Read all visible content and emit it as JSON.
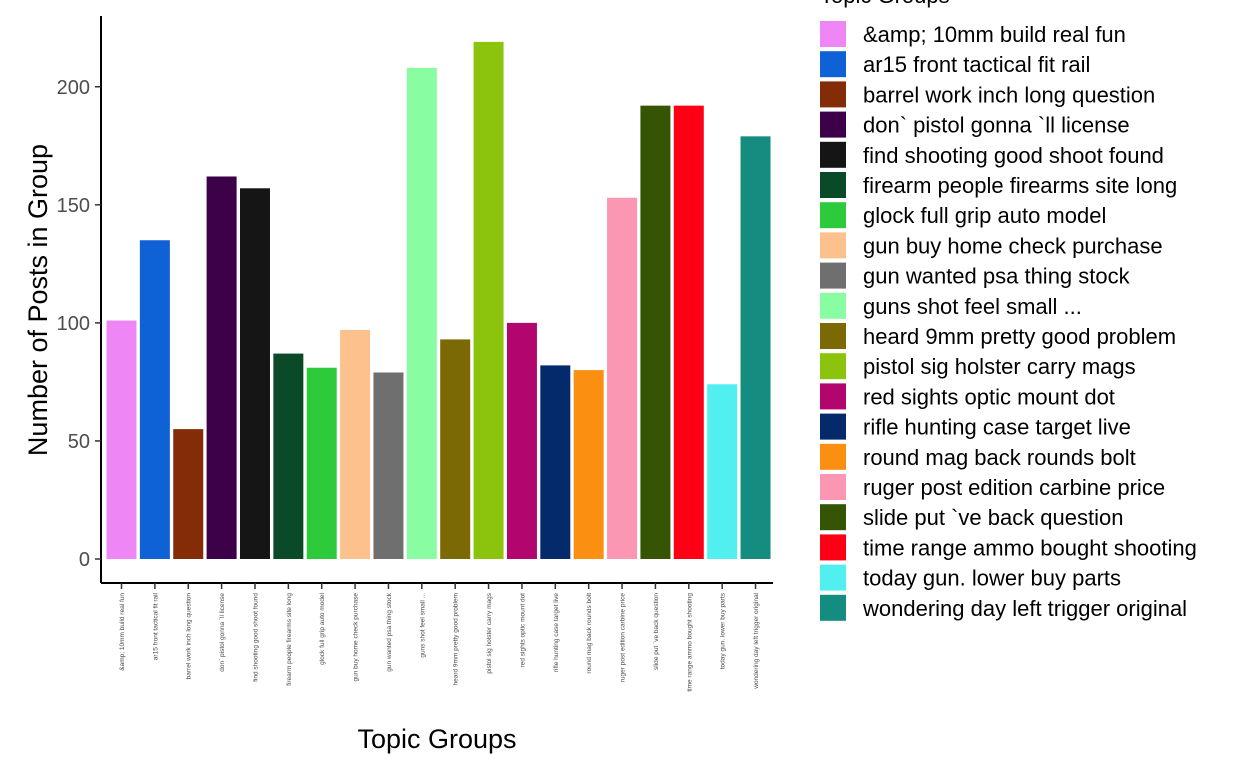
{
  "chart_data": {
    "type": "bar",
    "xlabel": "Topic Groups",
    "ylabel": "Number of Posts in Group",
    "legend_title": "Topic Groups",
    "legend_position": "right",
    "grid": false,
    "ylim": [
      0,
      230
    ],
    "yticks": [
      0,
      50,
      100,
      150,
      200
    ],
    "categories": [
      "&amp; 10mm build real fun",
      "ar15 front tactical fit rail",
      "barrel work inch long question",
      "don` pistol gonna `ll license",
      "find shooting good shoot found",
      "firearm people firearms site long",
      "glock full grip auto model",
      "gun buy home check purchase",
      "gun wanted psa thing stock",
      "guns shot feel small ...",
      "heard 9mm pretty good problem",
      "pistol sig holster carry mags",
      "red sights optic mount dot",
      "rifle hunting case target live",
      "round mag back rounds bolt",
      "ruger post edition carbine price",
      "slide put `ve back question",
      "time range ammo bought shooting",
      "today gun. lower buy parts",
      "wondering day left trigger original"
    ],
    "values": [
      101,
      135,
      55,
      162,
      157,
      87,
      81,
      97,
      79,
      208,
      93,
      219,
      100,
      82,
      80,
      153,
      192,
      192,
      74,
      179
    ],
    "colors": [
      "#EE87F5",
      "#0F61D6",
      "#842B07",
      "#3D0149",
      "#151515",
      "#0B4A28",
      "#2DCB3C",
      "#FCC18C",
      "#6F6F6F",
      "#88FDA1",
      "#7B6905",
      "#8CC40D",
      "#B2056D",
      "#052A6B",
      "#FB8F11",
      "#FB97B2",
      "#355505",
      "#FE0015",
      "#51EFF0",
      "#148C7F"
    ]
  }
}
